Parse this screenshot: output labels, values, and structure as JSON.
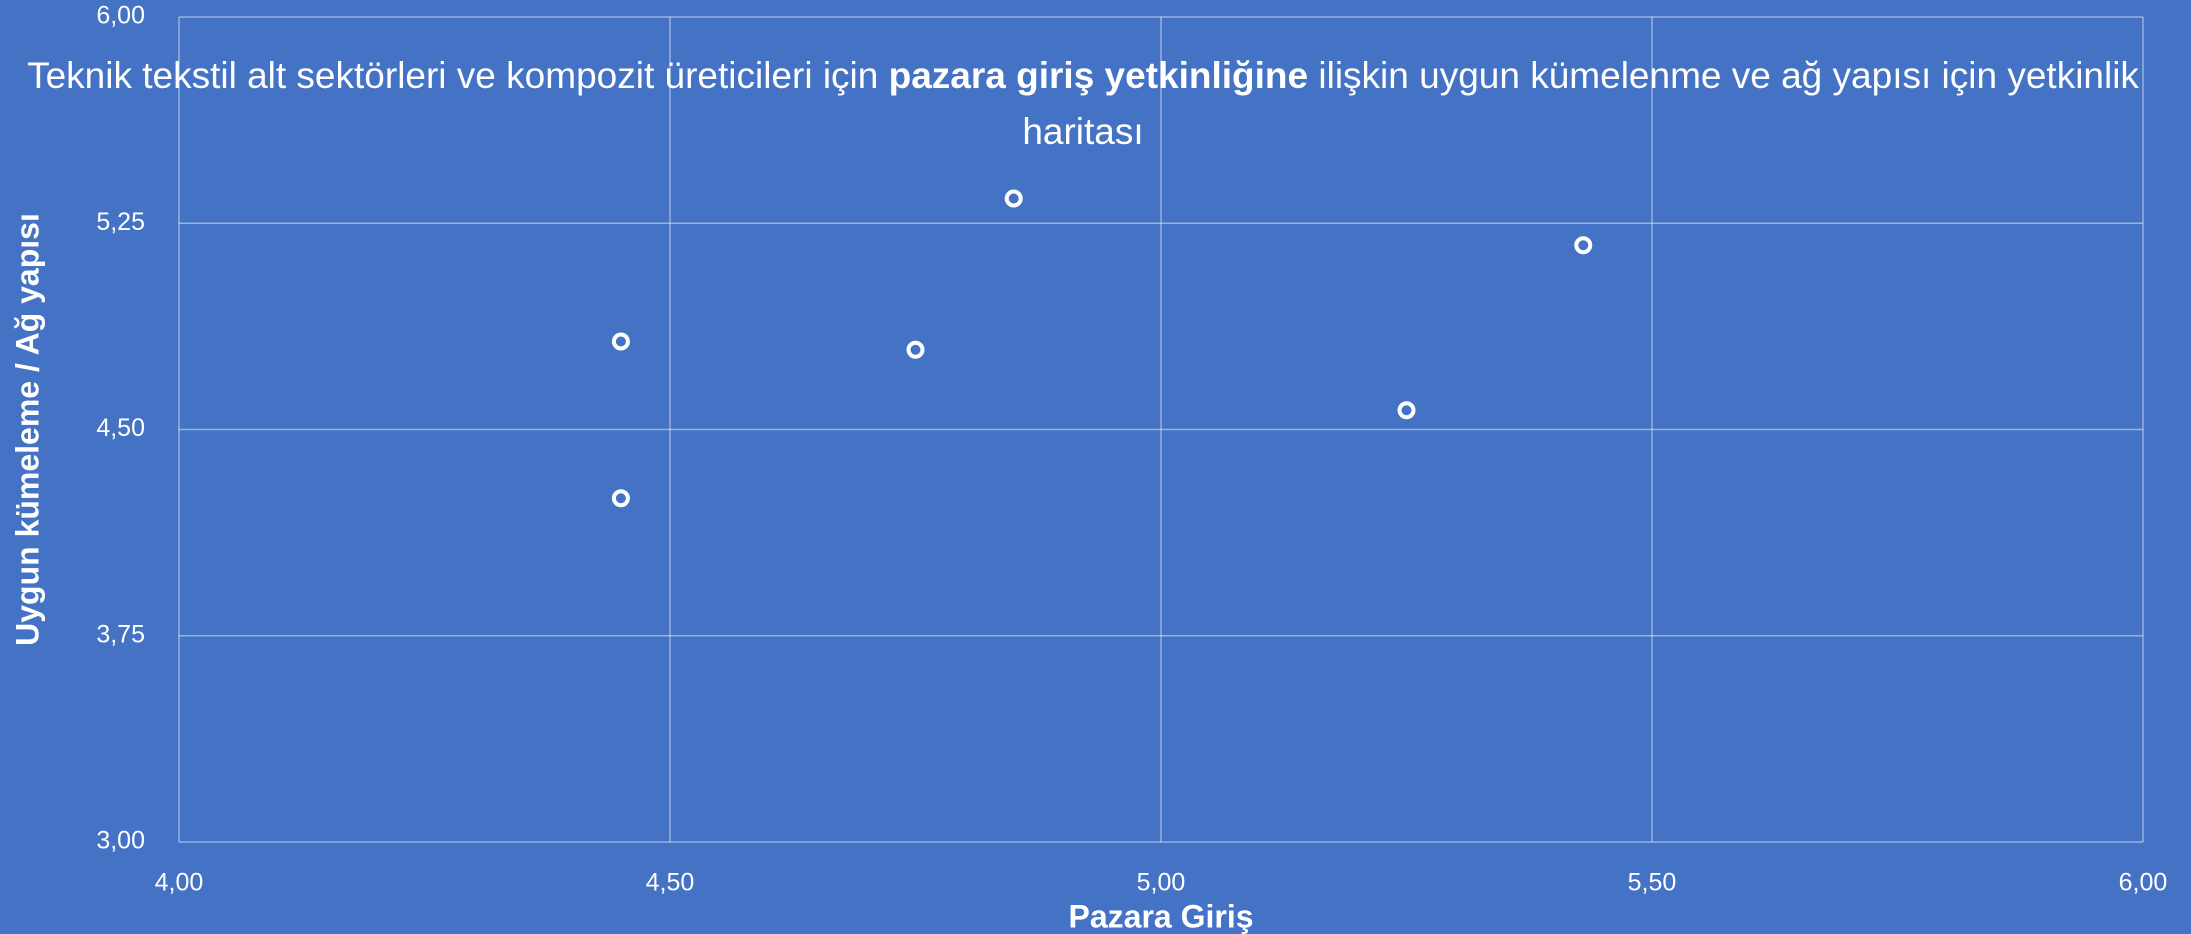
{
  "chart_data": {
    "type": "scatter",
    "title": [
      {
        "text": "Teknik tekstil alt sektörleri ve kompozit üreticileri için ",
        "bold": false
      },
      {
        "text": "pazara giriş yetkinliğine",
        "bold": true
      },
      {
        "text": " ilişkin uygun kümelenme ve ağ yapısı için yetkinlik haritası",
        "bold": false
      }
    ],
    "x_label": "Pazara Giriş",
    "y_label": "Uygun kümeleme / Ağ yapısı",
    "x": [
      4.45,
      4.45,
      4.75,
      4.85,
      5.25,
      5.43
    ],
    "values": [
      4.82,
      4.25,
      4.79,
      5.34,
      4.57,
      5.17
    ],
    "color": "#ffffff",
    "background": "#4472c4",
    "grid": true,
    "xlim": [
      4,
      6
    ],
    "ylim": [
      3,
      6
    ],
    "xticks": [
      {
        "value": 4,
        "label": "4,00"
      },
      {
        "value": 4.5,
        "label": "4,50"
      },
      {
        "value": 5,
        "label": "5,00"
      },
      {
        "value": 5.5,
        "label": "5,50"
      },
      {
        "value": 6,
        "label": "6,00"
      }
    ],
    "yticks": [
      {
        "value": 3,
        "label": "3,00"
      },
      {
        "value": 3.75,
        "label": "3,75"
      },
      {
        "value": 4.5,
        "label": "4,50"
      },
      {
        "value": 5.25,
        "label": "5,25"
      },
      {
        "value": 6,
        "label": "6,00"
      }
    ]
  }
}
